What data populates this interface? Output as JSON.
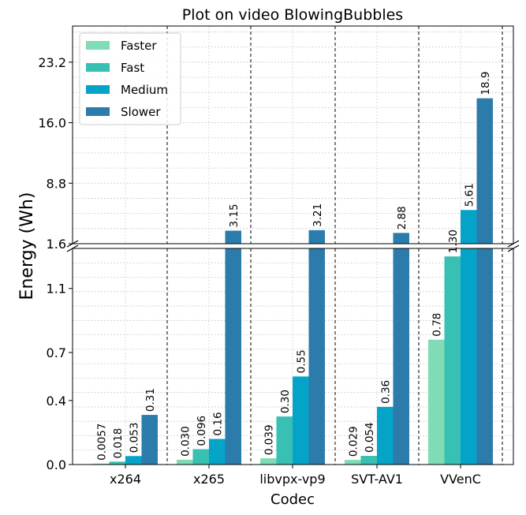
{
  "chart_data": {
    "type": "bar",
    "title": "Plot on video BlowingBubbles",
    "xlabel": "Codec",
    "ylabel": "Energy (Wh)",
    "categories": [
      "x264",
      "x265",
      "libvpx-vp9",
      "SVT-AV1",
      "VVenC"
    ],
    "series": [
      {
        "name": "Faster",
        "color": "#7fdcb4",
        "values": [
          0.0057,
          0.03,
          0.039,
          0.029,
          0.78
        ],
        "labels": [
          "0.0057",
          "0.030",
          "0.039",
          "0.029",
          "0.78"
        ]
      },
      {
        "name": "Fast",
        "color": "#38c0b3",
        "values": [
          0.018,
          0.096,
          0.3,
          0.054,
          1.3
        ],
        "labels": [
          "0.018",
          "0.096",
          "0.30",
          "0.054",
          "1.30"
        ]
      },
      {
        "name": "Medium",
        "color": "#06a3c9",
        "values": [
          0.053,
          0.16,
          0.55,
          0.36,
          5.61
        ],
        "labels": [
          "0.053",
          "0.16",
          "0.55",
          "0.36",
          "5.61"
        ]
      },
      {
        "name": "Slower",
        "color": "#2b7bab",
        "values": [
          0.31,
          3.15,
          3.21,
          2.88,
          18.9
        ],
        "labels": [
          "0.31",
          "3.15",
          "3.21",
          "2.88",
          "18.9"
        ]
      }
    ],
    "y_axis_broken": true,
    "lower_ylim": [
      0,
      1.35
    ],
    "lower_ticks": [
      "0.0",
      "0.4",
      "0.7",
      "1.1"
    ],
    "upper_ylim": [
      1.6,
      27.5
    ],
    "upper_ticks": [
      "1.6",
      "8.8",
      "16.0",
      "23.2"
    ],
    "grid": true,
    "legend_position": "top-left"
  }
}
